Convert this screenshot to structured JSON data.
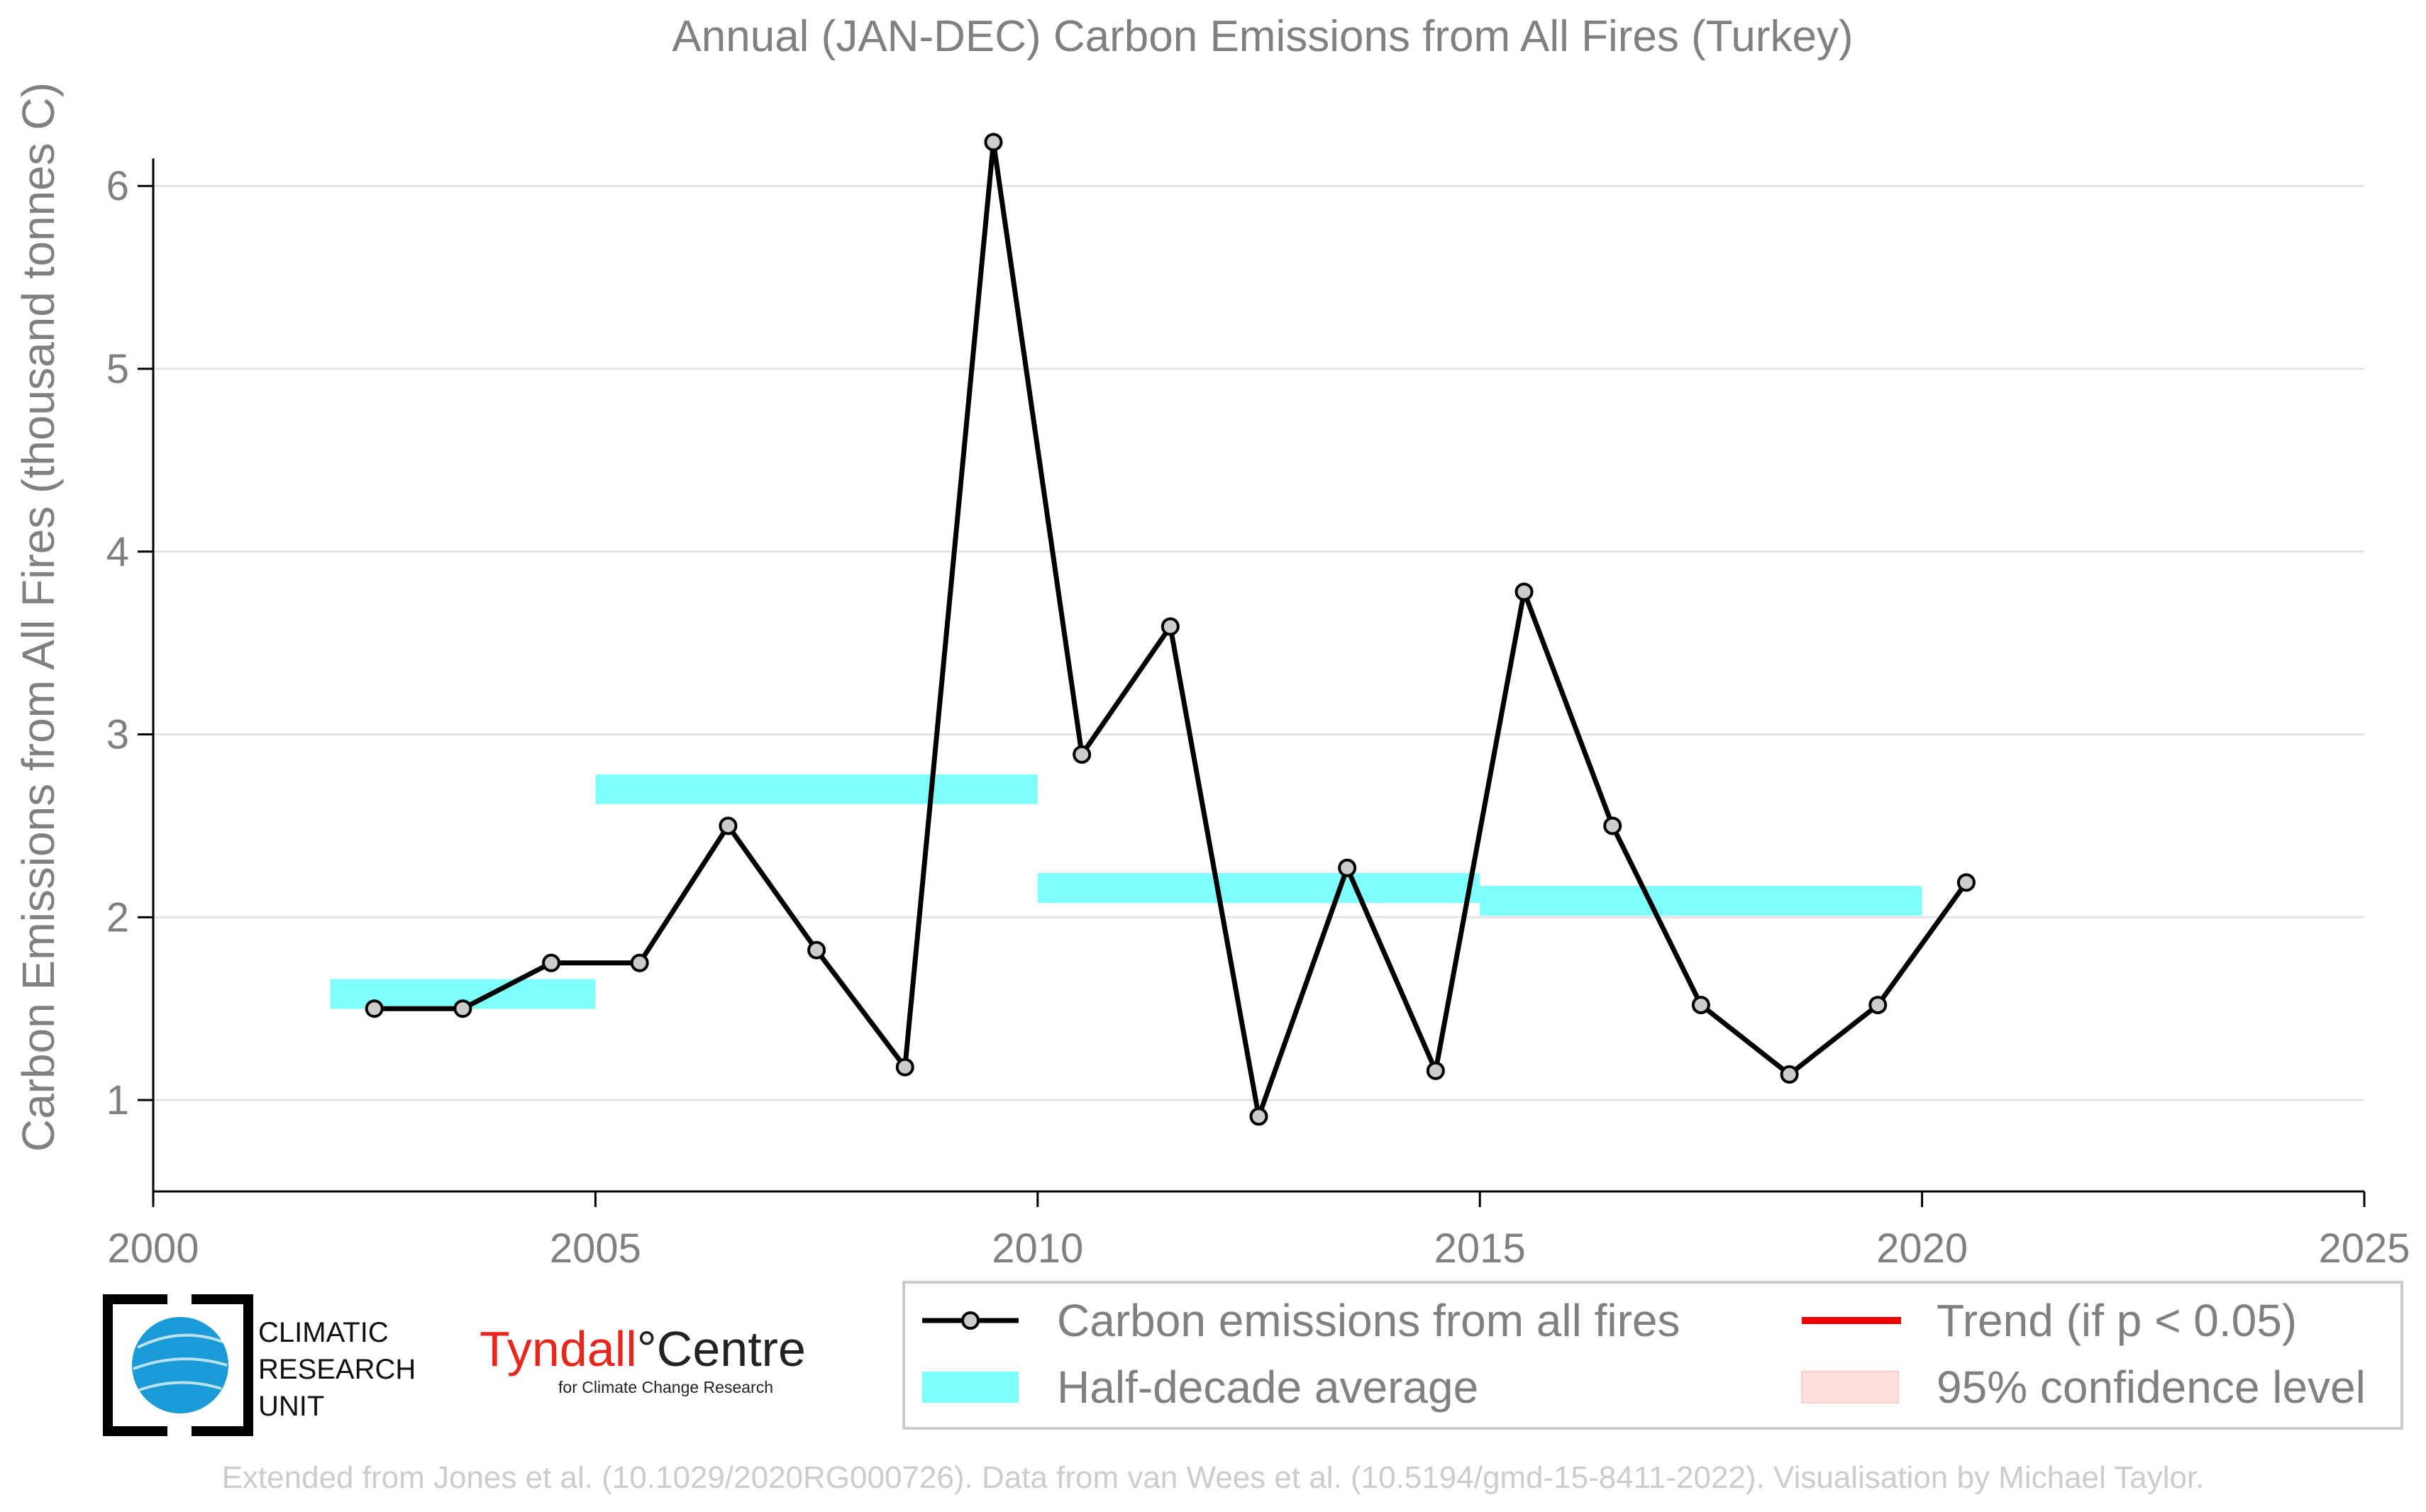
{
  "chart_data": {
    "type": "line",
    "title": "Annual (JAN-DEC) Carbon Emissions from All Fires (Turkey)",
    "xlabel": "",
    "ylabel": "Carbon Emissions from All Fires (thousand tonnes C)",
    "xlim": [
      2000,
      2025
    ],
    "ylim": [
      0.5,
      6.35
    ],
    "xticks": [
      2000,
      2005,
      2010,
      2015,
      2020,
      2025
    ],
    "yticks": [
      1,
      2,
      3,
      4,
      5,
      6
    ],
    "grid": "horizontal",
    "series": [
      {
        "name": "Carbon emissions from all fires",
        "color": "#000000",
        "x": [
          2002.5,
          2003.5,
          2004.5,
          2005.5,
          2006.5,
          2007.5,
          2008.5,
          2009.5,
          2010.5,
          2011.5,
          2012.5,
          2013.5,
          2014.5,
          2015.5,
          2016.5,
          2017.5,
          2018.5,
          2019.5,
          2020.5
        ],
        "y": [
          1.5,
          1.5,
          1.75,
          1.75,
          2.5,
          1.82,
          1.18,
          6.24,
          2.89,
          3.59,
          0.91,
          2.27,
          1.16,
          3.78,
          2.5,
          1.52,
          1.14,
          1.52,
          2.19
        ]
      }
    ],
    "half_decade_average": {
      "name": "Half-decade average",
      "color": "#80ffff",
      "segments": [
        {
          "x0": 2002,
          "x1": 2005,
          "y": 1.58
        },
        {
          "x0": 2005,
          "x1": 2010,
          "y": 2.7
        },
        {
          "x0": 2010,
          "x1": 2015,
          "y": 2.16
        },
        {
          "x0": 2015,
          "x1": 2020,
          "y": 2.09
        }
      ]
    },
    "legend": {
      "placement": "bottom-right",
      "entries": [
        {
          "key": "emissions",
          "label": "Carbon emissions from all fires"
        },
        {
          "key": "trend",
          "label": "Trend (if p < 0.05)",
          "color": "#ee0000"
        },
        {
          "key": "average",
          "label": "Half-decade average"
        },
        {
          "key": "confidence",
          "label": "95% confidence level",
          "color": "#ffe0e0"
        }
      ]
    }
  },
  "logos": {
    "cru_lines": [
      "CLIMATIC",
      "RESEARCH",
      "UNIT"
    ],
    "tyndall_name": "Tyndall",
    "tyndall_suffix": "°Centre",
    "tyndall_sub": "for Climate Change Research"
  },
  "footer": "Extended from Jones et al. (10.1029/2020RG000726). Data from van Wees et al. (10.5194/gmd-15-8411-2022). Visualisation by Michael Taylor."
}
